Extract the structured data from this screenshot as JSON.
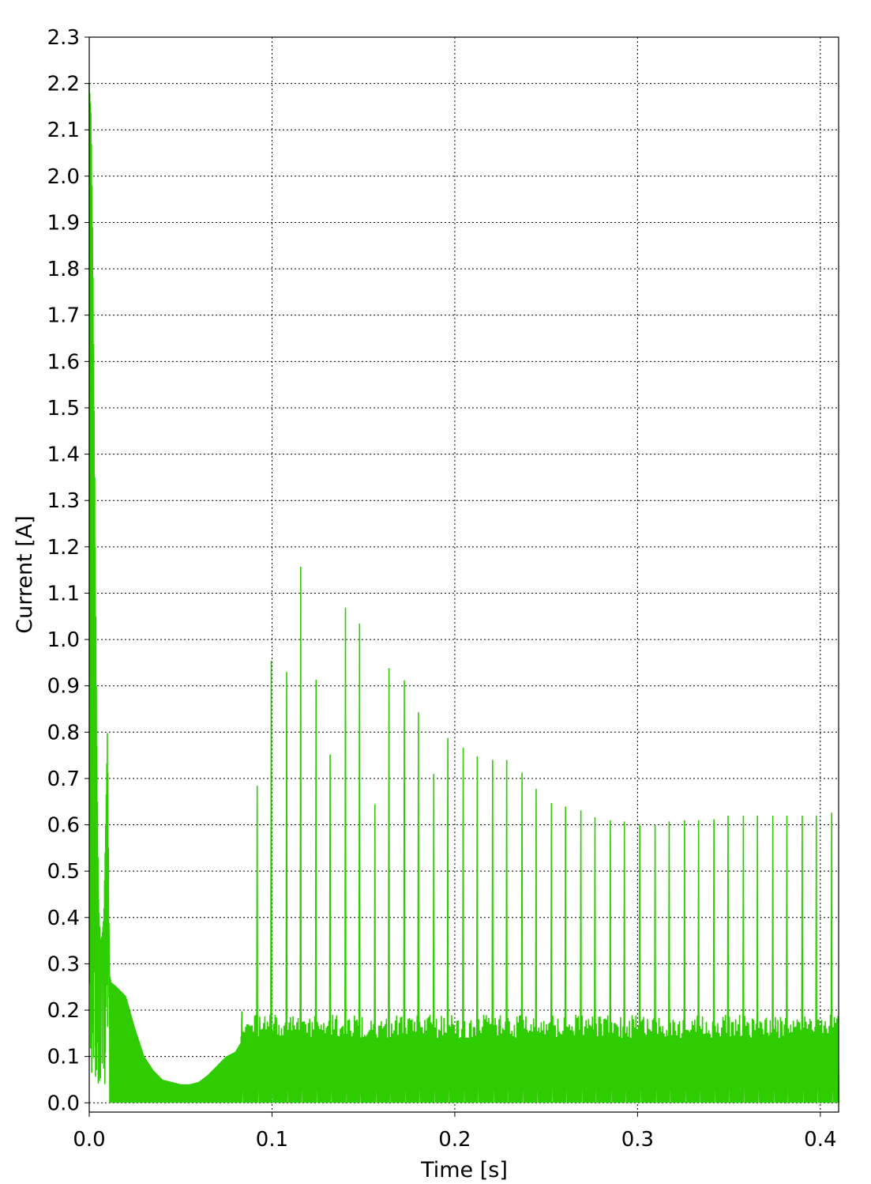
{
  "chart_data": {
    "type": "line",
    "xlabel": "Time [s]",
    "ylabel": "Current [A]",
    "xlim": [
      0.0,
      0.41
    ],
    "ylim": [
      -0.02,
      2.3
    ],
    "x_ticks": [
      "0.0",
      "0.1",
      "0.2",
      "0.3",
      "0.4"
    ],
    "x_tick_values": [
      0.0,
      0.1,
      0.2,
      0.3,
      0.4
    ],
    "y_ticks": [
      "0.0",
      "0.1",
      "0.2",
      "0.3",
      "0.4",
      "0.5",
      "0.6",
      "0.7",
      "0.8",
      "0.9",
      "1.0",
      "1.1",
      "1.2",
      "1.3",
      "1.4",
      "1.5",
      "1.6",
      "1.7",
      "1.8",
      "1.9",
      "2.0",
      "2.1",
      "2.2",
      "2.3"
    ],
    "y_tick_values": [
      0.0,
      0.1,
      0.2,
      0.3,
      0.4,
      0.5,
      0.6,
      0.7,
      0.8,
      0.9,
      1.0,
      1.1,
      1.2,
      1.3,
      1.4,
      1.5,
      1.6,
      1.7,
      1.8,
      1.9,
      2.0,
      2.1,
      2.2,
      2.3
    ],
    "grid": true,
    "series_color": "#2ecc00",
    "series": [
      {
        "x": [
          0.0,
          0.001,
          0.002,
          0.003,
          0.004,
          0.005,
          0.006,
          0.007,
          0.008,
          0.009,
          0.01,
          0.011,
          0.012,
          0.015,
          0.02,
          0.025,
          0.03,
          0.035,
          0.04,
          0.045,
          0.05,
          0.055,
          0.06,
          0.065,
          0.07,
          0.075,
          0.08,
          0.083,
          0.085,
          0.09,
          0.093,
          0.095,
          0.1,
          0.102,
          0.105,
          0.11,
          0.114,
          0.118,
          0.122,
          0.126,
          0.13,
          0.135,
          0.14,
          0.145,
          0.15,
          0.155,
          0.16,
          0.165,
          0.17,
          0.175,
          0.18,
          0.185,
          0.19,
          0.195,
          0.2,
          0.21,
          0.22,
          0.23,
          0.24,
          0.25,
          0.26,
          0.27,
          0.28,
          0.29,
          0.3,
          0.31,
          0.32,
          0.33,
          0.34,
          0.35,
          0.36,
          0.37,
          0.38,
          0.39,
          0.4,
          0.41
        ],
        "y": [
          2.2,
          2.13,
          1.83,
          1.35,
          0.85,
          0.45,
          0.35,
          0.36,
          0.4,
          0.6,
          0.82,
          0.28,
          0.26,
          0.25,
          0.23,
          0.16,
          0.1,
          0.07,
          0.05,
          0.045,
          0.04,
          0.04,
          0.045,
          0.06,
          0.08,
          0.1,
          0.11,
          0.13,
          0.4,
          0.26,
          0.93,
          0.42,
          1.0,
          1.05,
          0.6,
          1.15,
          1.14,
          1.18,
          0.64,
          1.16,
          0.55,
          1.11,
          1.07,
          1.04,
          1.03,
          0.53,
          0.97,
          0.93,
          0.95,
          0.87,
          0.85,
          0.5,
          0.8,
          0.79,
          0.78,
          0.75,
          0.74,
          0.74,
          0.7,
          0.65,
          0.64,
          0.63,
          0.61,
          0.61,
          0.6,
          0.6,
          0.61,
          0.61,
          0.61,
          0.62,
          0.62,
          0.62,
          0.62,
          0.62,
          0.62,
          0.63
        ]
      }
    ]
  }
}
